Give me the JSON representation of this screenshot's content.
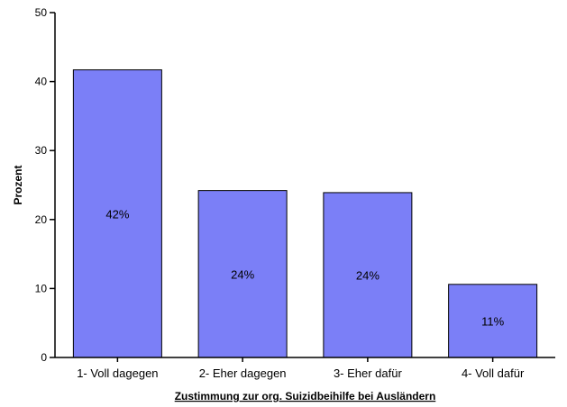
{
  "chart_data": {
    "type": "bar",
    "categories": [
      "1- Voll dagegen",
      "2- Eher dagegen",
      "3- Eher dafür",
      "4- Voll dafür"
    ],
    "values": [
      41.7,
      24.2,
      23.9,
      10.6
    ],
    "data_labels": [
      "42%",
      "24%",
      "24%",
      "11%"
    ],
    "xlabel": "Zustimmung zur org. Suizidbeihilfe bei Ausländern",
    "ylabel": "Prozent",
    "ylim": [
      0,
      50
    ],
    "yticks": [
      0,
      10,
      20,
      30,
      40,
      50
    ],
    "grid": false,
    "colors": {
      "bar_fill": "#7b7ff7",
      "bar_stroke": "#000000",
      "plot_background": "#ffffff",
      "axis": "#000000"
    }
  }
}
